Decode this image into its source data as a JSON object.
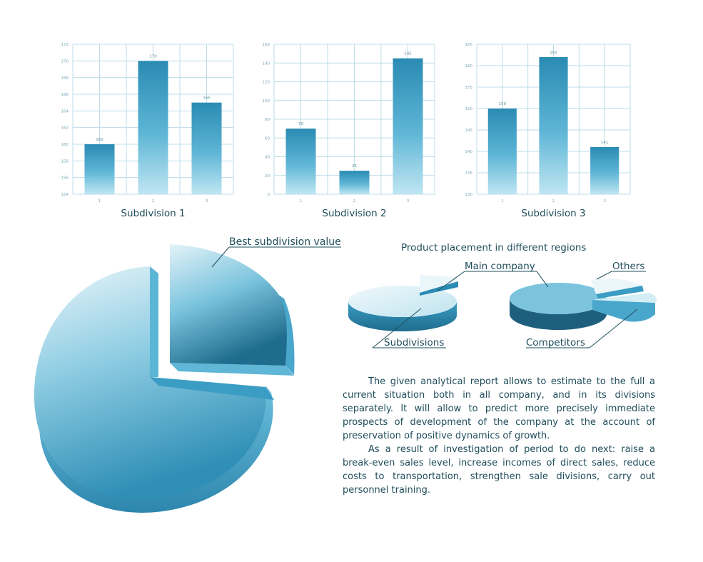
{
  "chart_data": [
    {
      "type": "bar",
      "title": "Subdivision 1",
      "categories": [
        "1",
        "2",
        "3"
      ],
      "values": [
        160,
        170,
        165
      ],
      "data_labels": [
        "160",
        "170",
        "165"
      ],
      "ylim": [
        154,
        172
      ],
      "yticks": [
        "154",
        "156",
        "158",
        "160",
        "162",
        "164",
        "166",
        "168",
        "170",
        "172"
      ],
      "grid": true
    },
    {
      "type": "bar",
      "title": "Subdivision 2",
      "categories": [
        "1",
        "2",
        "3"
      ],
      "values": [
        70,
        25,
        145
      ],
      "data_labels": [
        "70",
        "25",
        "145"
      ],
      "ylim": [
        0,
        160
      ],
      "yticks": [
        "0",
        "20",
        "40",
        "60",
        "80",
        "100",
        "120",
        "140",
        "160"
      ],
      "grid": true
    },
    {
      "type": "bar",
      "title": "Subdivision 3",
      "categories": [
        "1",
        "2",
        "3"
      ],
      "values": [
        150,
        162,
        141
      ],
      "data_labels": [
        "150",
        "162",
        "141"
      ],
      "ylim": [
        130,
        165
      ],
      "yticks": [
        "130",
        "135",
        "140",
        "145",
        "150",
        "155",
        "160",
        "165"
      ],
      "grid": true
    },
    {
      "type": "pie",
      "title": "",
      "categories": [
        "Best subdivision value",
        ""
      ],
      "values": [
        25,
        75
      ],
      "annotations": [
        "Best subdivision value"
      ]
    },
    {
      "type": "pie",
      "title": "Product placement in different regions",
      "categories": [
        "Main company",
        "Subdivisions"
      ],
      "values": [
        8,
        92
      ],
      "annotations": [
        "Main company",
        "Subdivisions"
      ]
    },
    {
      "type": "pie",
      "title": "",
      "categories": [
        "Others",
        "Competitors",
        ""
      ],
      "values": [
        10,
        10,
        80
      ],
      "annotations": [
        "Others",
        "Competitors"
      ]
    }
  ],
  "text": {
    "paragraph1": "The given analytical report allows to estimate to the full a current situation both in all company, and in its divisions separately. It will allow to predict more precisely immediate prospects of development of the company at the account of preservation of positive dynamics of growth.",
    "paragraph2": "As a result of investigation of period to do next: raise a break-even sales level, increase incomes of direct sales, reduce costs to transportation, strengthen sale divisions, carry out personnel training."
  },
  "colors": {
    "bar_dark": "#2a8bb3",
    "bar_light": "#bfe6f2",
    "grid": "#bcdde8",
    "pie_light": "#e4f3f8",
    "pie_mid": "#4ca9cc",
    "pie_dark": "#1f6d8e",
    "text": "#1f4d5b"
  }
}
